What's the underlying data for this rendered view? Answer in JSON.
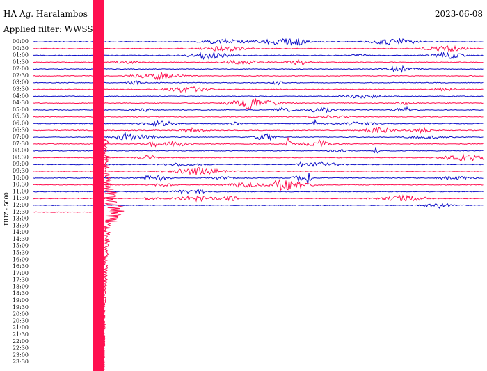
{
  "header": {
    "station": "HA Ag. Haralambos",
    "date": "2023-06-08",
    "filter": "Applied filter: WWSSN-"
  },
  "channel": "HHZ - 5000",
  "time_labels": [
    "00:00",
    "00:30",
    "01:00",
    "01:30",
    "02:00",
    "02:30",
    "03:00",
    "03:30",
    "04:00",
    "04:30",
    "05:00",
    "05:30",
    "06:00",
    "06:30",
    "07:00",
    "07:30",
    "08:00",
    "08:30",
    "09:00",
    "09:30",
    "10:00",
    "10:30",
    "11:00",
    "11:30",
    "12:00",
    "12:30",
    "13:00",
    "13:30",
    "14:00",
    "14:30",
    "15:00",
    "15:30",
    "16:00",
    "16:30",
    "17:00",
    "17:30",
    "18:00",
    "18:30",
    "19:00",
    "19:30",
    "20:00",
    "20:30",
    "21:00",
    "21:30",
    "22:00",
    "22:30",
    "23:00",
    "23:30"
  ]
}
